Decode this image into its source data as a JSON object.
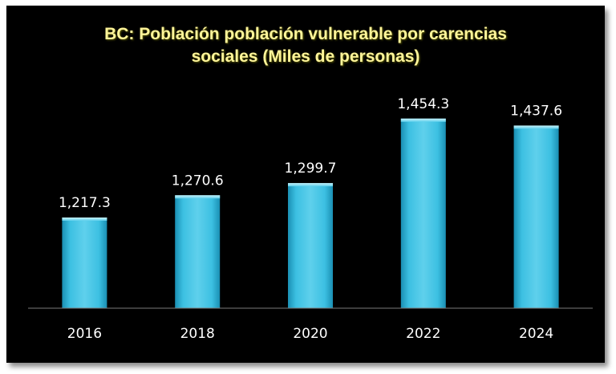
{
  "chart_data": {
    "type": "bar",
    "title_lines": [
      "BC: Población población vulnerable por carencias",
      "sociales (Miles de personas)"
    ],
    "categories": [
      "2016",
      "2018",
      "2020",
      "2022",
      "2024"
    ],
    "values": [
      1217.3,
      1270.6,
      1299.7,
      1454.3,
      1437.6
    ],
    "data_labels": [
      "1,217.3",
      "1,270.6",
      "1,299.7",
      "1,454.3",
      "1,437.6"
    ],
    "xlabel": "",
    "ylabel": "",
    "ylim": [
      1000,
      1500
    ],
    "grid": false,
    "legend": "none",
    "colors": {
      "bar_light": "#8fe2f4",
      "bar_mid": "#3cc0e2",
      "bar_dark": "#1a8fb3",
      "background": "#000000",
      "title": "#fff59a",
      "label_text": "#ffffff"
    }
  }
}
